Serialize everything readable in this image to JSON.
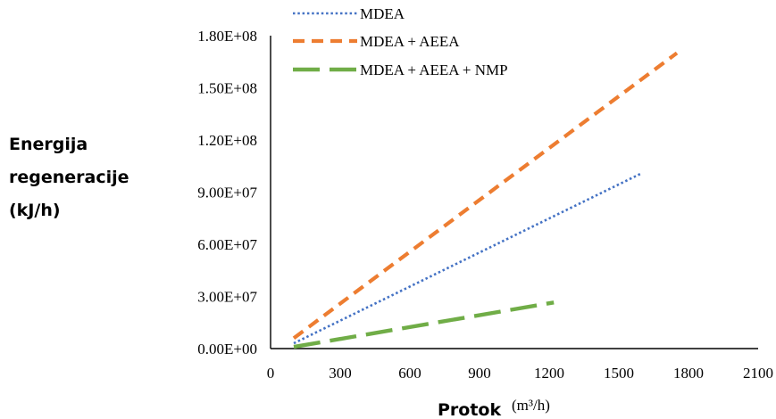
{
  "chart_data": {
    "type": "line",
    "title": "",
    "ylabel_lines": [
      "Energija",
      "regeneracije",
      "(kJ/h)"
    ],
    "xlabel": "Protok",
    "xlabel_unit": "(m³/h)",
    "xlim": [
      0,
      2100
    ],
    "ylim": [
      0,
      180000000
    ],
    "x_ticks": [
      0,
      300,
      600,
      900,
      1200,
      1500,
      1800,
      2100
    ],
    "x_tick_labels": [
      "0",
      "300",
      "600",
      "900",
      "1200",
      "1500",
      "1800",
      "2100"
    ],
    "y_ticks": [
      0,
      30000000,
      60000000,
      90000000,
      120000000,
      150000000,
      180000000
    ],
    "y_tick_labels": [
      "0.00E+00",
      "3.00E+07",
      "6.00E+07",
      "9.00E+07",
      "1.20E+08",
      "1.50E+08",
      "1.80E+08"
    ],
    "grid": false,
    "legend_position": "top",
    "series": [
      {
        "name": "MDEA",
        "color": "#4472c4",
        "dash": "dotted",
        "x": [
          100,
          1600
        ],
        "y": [
          3000000,
          101000000
        ]
      },
      {
        "name": "MDEA + AEEA",
        "color": "#ed7d31",
        "dash": "dashed",
        "x": [
          100,
          1750
        ],
        "y": [
          6000000,
          170000000
        ]
      },
      {
        "name": "MDEA + AEEA + NMP",
        "color": "#70ad47",
        "dash": "longdash",
        "x": [
          100,
          1220
        ],
        "y": [
          1000000,
          26500000
        ]
      }
    ]
  }
}
